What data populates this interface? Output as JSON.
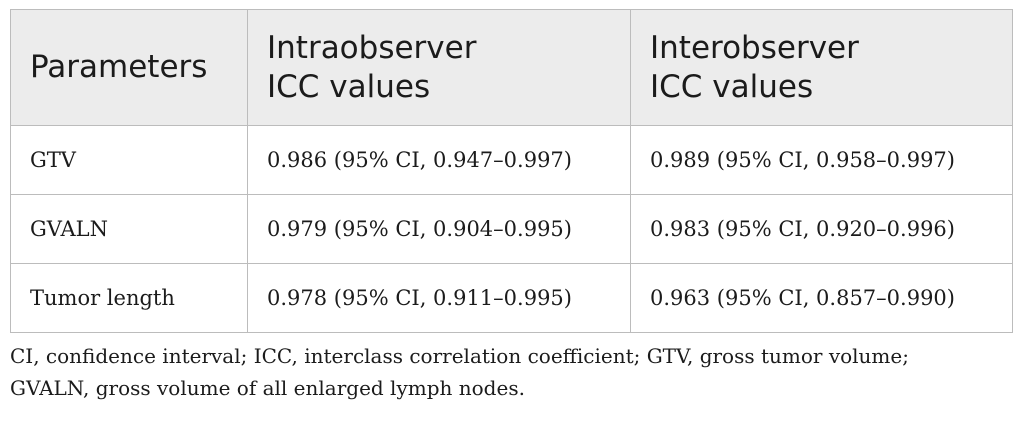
{
  "table": {
    "headers": [
      {
        "lines": [
          "Parameters"
        ]
      },
      {
        "lines": [
          "Intraobserver",
          "ICC values"
        ]
      },
      {
        "lines": [
          "Interobserver",
          "ICC values"
        ]
      }
    ],
    "rows": [
      {
        "parameter": "GTV",
        "intra": "0.986 (95% CI, 0.947–0.997)",
        "inter": "0.989 (95% CI, 0.958–0.997)"
      },
      {
        "parameter": "GVALN",
        "intra": "0.979 (95% CI, 0.904–0.995)",
        "inter": "0.983 (95% CI, 0.920–0.996)"
      },
      {
        "parameter": "Tumor length",
        "intra": "0.978 (95% CI, 0.911–0.995)",
        "inter": "0.963 (95% CI, 0.857–0.990)"
      }
    ]
  },
  "footnote": {
    "line1": "CI, confidence interval; ICC, interclass correlation coefficient; GTV, gross tumor volume;",
    "line2": "GVALN, gross volume of all enlarged lymph nodes."
  },
  "colors": {
    "header_background": "#ececec",
    "border": "#bcbcbc",
    "text": "#1b1b1b"
  }
}
